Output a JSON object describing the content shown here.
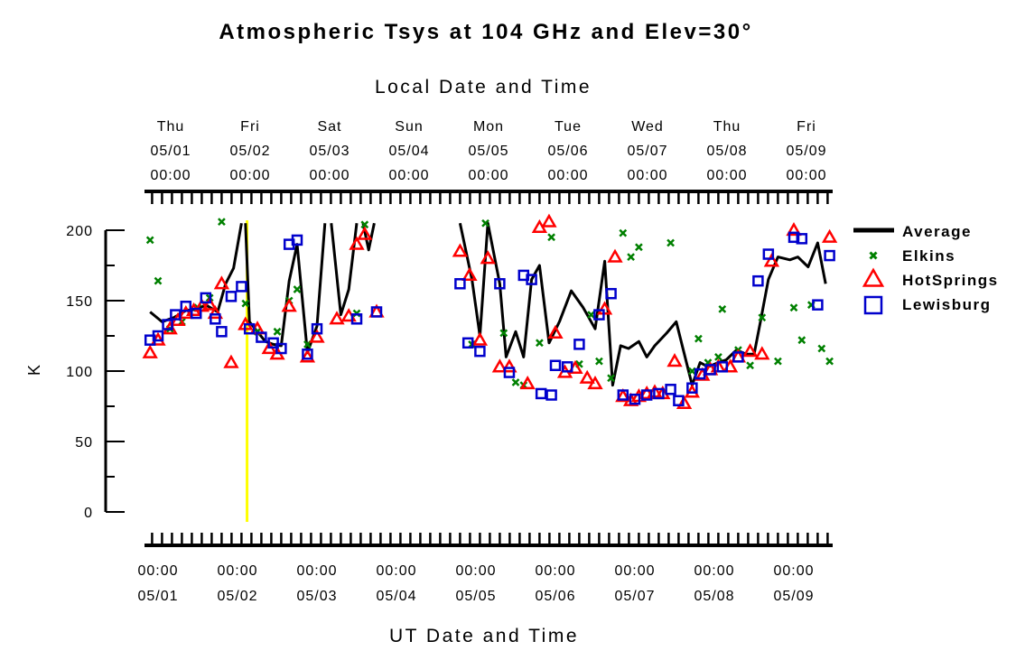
{
  "chart_data": {
    "type": "scatter",
    "title": "Atmospheric Tsys at 104 GHz and Elev=30°",
    "top_axis_label": "Local Date and Time",
    "xlabel": "UT Date and Time",
    "ylabel": "K",
    "ylim": [
      0,
      200
    ],
    "y_ticks": [
      "0",
      "50",
      "100",
      "150",
      "200"
    ],
    "x_unit": "days since 05/01 00:00 UT",
    "xlim": [
      -0.2,
      8.55
    ],
    "bottom_ticks": [
      {
        "time": "00:00",
        "date": "05/01"
      },
      {
        "time": "00:00",
        "date": "05/02"
      },
      {
        "time": "00:00",
        "date": "05/03"
      },
      {
        "time": "00:00",
        "date": "05/04"
      },
      {
        "time": "00:00",
        "date": "05/05"
      },
      {
        "time": "00:00",
        "date": "05/06"
      },
      {
        "time": "00:00",
        "date": "05/07"
      },
      {
        "time": "00:00",
        "date": "05/08"
      },
      {
        "time": "00:00",
        "date": "05/09"
      }
    ],
    "top_ticks": [
      {
        "day": "Thu",
        "date": "05/01",
        "time": "00:00"
      },
      {
        "day": "Fri",
        "date": "05/02",
        "time": "00:00"
      },
      {
        "day": "Sat",
        "date": "05/03",
        "time": "00:00"
      },
      {
        "day": "Sun",
        "date": "05/04",
        "time": "00:00"
      },
      {
        "day": "Mon",
        "date": "05/05",
        "time": "00:00"
      },
      {
        "day": "Tue",
        "date": "05/06",
        "time": "00:00"
      },
      {
        "day": "Wed",
        "date": "05/07",
        "time": "00:00"
      },
      {
        "day": "Thu",
        "date": "05/08",
        "time": "00:00"
      },
      {
        "day": "Fri",
        "date": "05/09",
        "time": "00:00"
      }
    ],
    "current_time_marker_x": 1.12,
    "legend_position": "right",
    "colors": {
      "average": "#000000",
      "elkins": "#008000",
      "hotsprings": "#ff0000",
      "lewisburg": "#0000cc",
      "marker_line": "#ffff00"
    },
    "series": [
      {
        "name": "Average",
        "style": "line",
        "segments": [
          [
            [
              -0.1,
              142
            ],
            [
              0.05,
              135
            ],
            [
              0.2,
              138
            ],
            [
              0.35,
              143
            ],
            [
              0.5,
              144
            ],
            [
              0.6,
              147
            ],
            [
              0.75,
              142
            ],
            [
              0.85,
              162
            ],
            [
              0.95,
              173
            ],
            [
              1.05,
              205
            ]
          ],
          [
            [
              1.1,
              205
            ],
            [
              1.15,
              135
            ],
            [
              1.25,
              128
            ],
            [
              1.35,
              121
            ],
            [
              1.45,
              119
            ],
            [
              1.55,
              118
            ],
            [
              1.65,
              164
            ],
            [
              1.75,
              190
            ],
            [
              1.88,
              113
            ],
            [
              2.0,
              132
            ],
            [
              2.1,
              205
            ]
          ],
          [
            [
              2.18,
              205
            ],
            [
              2.3,
              140
            ],
            [
              2.4,
              158
            ],
            [
              2.5,
              205
            ]
          ],
          [
            [
              2.58,
              205
            ],
            [
              2.65,
              186
            ],
            [
              2.72,
              205
            ]
          ],
          [
            [
              3.8,
              205
            ],
            [
              3.95,
              165
            ],
            [
              4.05,
              125
            ],
            [
              4.15,
              205
            ],
            [
              4.3,
              162
            ],
            [
              4.38,
              110
            ],
            [
              4.5,
              128
            ],
            [
              4.6,
              110
            ],
            [
              4.7,
              165
            ],
            [
              4.8,
              175
            ],
            [
              4.92,
              120
            ],
            [
              5.05,
              135
            ],
            [
              5.2,
              157
            ],
            [
              5.35,
              145
            ],
            [
              5.5,
              130
            ],
            [
              5.62,
              178
            ],
            [
              5.72,
              90
            ],
            [
              5.82,
              118
            ],
            [
              5.92,
              116
            ],
            [
              6.05,
              121
            ],
            [
              6.15,
              110
            ],
            [
              6.25,
              118
            ],
            [
              6.4,
              127
            ],
            [
              6.52,
              135
            ],
            [
              6.72,
              90
            ],
            [
              6.82,
              106
            ],
            [
              6.92,
              103
            ],
            [
              7.05,
              106
            ],
            [
              7.15,
              108
            ],
            [
              7.28,
              115
            ],
            [
              7.4,
              112
            ],
            [
              7.5,
              112
            ],
            [
              7.58,
              135
            ],
            [
              7.68,
              165
            ],
            [
              7.8,
              181
            ],
            [
              7.95,
              179
            ],
            [
              8.05,
              181
            ],
            [
              8.18,
              174
            ],
            [
              8.3,
              191
            ],
            [
              8.4,
              162
            ]
          ]
        ]
      },
      {
        "name": "Elkins",
        "style": "x",
        "points": [
          [
            -0.1,
            193
          ],
          [
            0.0,
            164
          ],
          [
            0.15,
            130
          ],
          [
            0.3,
            135
          ],
          [
            0.5,
            145
          ],
          [
            0.65,
            152
          ],
          [
            0.8,
            206
          ],
          [
            1.1,
            148
          ],
          [
            1.25,
            128
          ],
          [
            1.5,
            128
          ],
          [
            1.65,
            150
          ],
          [
            1.75,
            158
          ],
          [
            1.88,
            119
          ],
          [
            2.5,
            141
          ],
          [
            2.6,
            204
          ],
          [
            3.95,
            119
          ],
          [
            4.12,
            205
          ],
          [
            4.35,
            127
          ],
          [
            4.5,
            92
          ],
          [
            4.6,
            90
          ],
          [
            4.8,
            120
          ],
          [
            4.95,
            195
          ],
          [
            5.3,
            105
          ],
          [
            5.45,
            140
          ],
          [
            5.55,
            107
          ],
          [
            5.7,
            95
          ],
          [
            5.85,
            198
          ],
          [
            5.95,
            181
          ],
          [
            6.05,
            188
          ],
          [
            6.45,
            191
          ],
          [
            6.72,
            100
          ],
          [
            6.8,
            123
          ],
          [
            6.92,
            106
          ],
          [
            7.05,
            110
          ],
          [
            7.1,
            144
          ],
          [
            7.3,
            115
          ],
          [
            7.45,
            104
          ],
          [
            7.6,
            138
          ],
          [
            7.8,
            107
          ],
          [
            8.0,
            145
          ],
          [
            8.1,
            122
          ],
          [
            8.22,
            147
          ],
          [
            8.35,
            116
          ],
          [
            8.45,
            107
          ]
        ]
      },
      {
        "name": "HotSprings",
        "style": "triangle",
        "points": [
          [
            -0.1,
            113
          ],
          [
            0.0,
            122
          ],
          [
            0.15,
            130
          ],
          [
            0.25,
            136
          ],
          [
            0.35,
            141
          ],
          [
            0.45,
            143
          ],
          [
            0.55,
            146
          ],
          [
            0.65,
            147
          ],
          [
            0.72,
            141
          ],
          [
            0.8,
            162
          ],
          [
            0.92,
            106
          ],
          [
            1.1,
            133
          ],
          [
            1.25,
            130
          ],
          [
            1.4,
            116
          ],
          [
            1.5,
            112
          ],
          [
            1.65,
            146
          ],
          [
            1.88,
            110
          ],
          [
            2.0,
            124
          ],
          [
            2.25,
            137
          ],
          [
            2.4,
            139
          ],
          [
            2.5,
            190
          ],
          [
            2.6,
            197
          ],
          [
            2.75,
            142
          ],
          [
            3.8,
            185
          ],
          [
            3.92,
            168
          ],
          [
            4.05,
            122
          ],
          [
            4.15,
            180
          ],
          [
            4.3,
            103
          ],
          [
            4.42,
            103
          ],
          [
            4.65,
            91
          ],
          [
            4.8,
            202
          ],
          [
            4.92,
            206
          ],
          [
            5.0,
            127
          ],
          [
            5.12,
            99
          ],
          [
            5.25,
            102
          ],
          [
            5.4,
            95
          ],
          [
            5.5,
            91
          ],
          [
            5.62,
            144
          ],
          [
            5.75,
            181
          ],
          [
            5.85,
            82
          ],
          [
            5.95,
            79
          ],
          [
            6.05,
            82
          ],
          [
            6.15,
            84
          ],
          [
            6.25,
            85
          ],
          [
            6.35,
            84
          ],
          [
            6.5,
            107
          ],
          [
            6.62,
            77
          ],
          [
            6.72,
            85
          ],
          [
            6.85,
            97
          ],
          [
            6.95,
            101
          ],
          [
            7.05,
            103
          ],
          [
            7.2,
            103
          ],
          [
            7.3,
            110
          ],
          [
            7.45,
            114
          ],
          [
            7.6,
            112
          ],
          [
            7.72,
            178
          ],
          [
            8.0,
            200
          ],
          [
            8.45,
            195
          ]
        ]
      },
      {
        "name": "Lewisburg",
        "style": "square",
        "points": [
          [
            -0.1,
            122
          ],
          [
            0.0,
            125
          ],
          [
            0.12,
            133
          ],
          [
            0.22,
            140
          ],
          [
            0.35,
            146
          ],
          [
            0.48,
            141
          ],
          [
            0.6,
            152
          ],
          [
            0.72,
            137
          ],
          [
            0.8,
            128
          ],
          [
            0.92,
            153
          ],
          [
            1.05,
            160
          ],
          [
            1.15,
            130
          ],
          [
            1.3,
            124
          ],
          [
            1.45,
            120
          ],
          [
            1.55,
            116
          ],
          [
            1.65,
            190
          ],
          [
            1.75,
            193
          ],
          [
            1.88,
            112
          ],
          [
            2.0,
            130
          ],
          [
            2.5,
            137
          ],
          [
            2.75,
            142
          ],
          [
            3.8,
            162
          ],
          [
            3.9,
            120
          ],
          [
            4.05,
            114
          ],
          [
            4.3,
            162
          ],
          [
            4.42,
            99
          ],
          [
            4.6,
            168
          ],
          [
            4.7,
            165
          ],
          [
            4.82,
            84
          ],
          [
            4.95,
            83
          ],
          [
            5.0,
            104
          ],
          [
            5.15,
            103
          ],
          [
            5.3,
            119
          ],
          [
            5.55,
            140
          ],
          [
            5.7,
            155
          ],
          [
            5.85,
            83
          ],
          [
            6.0,
            80
          ],
          [
            6.15,
            83
          ],
          [
            6.3,
            84
          ],
          [
            6.45,
            87
          ],
          [
            6.55,
            79
          ],
          [
            6.72,
            88
          ],
          [
            6.82,
            98
          ],
          [
            6.95,
            101
          ],
          [
            7.1,
            103
          ],
          [
            7.3,
            110
          ],
          [
            7.55,
            164
          ],
          [
            7.68,
            183
          ],
          [
            8.0,
            195
          ],
          [
            8.1,
            194
          ],
          [
            8.3,
            147
          ],
          [
            8.45,
            182
          ]
        ]
      }
    ]
  }
}
